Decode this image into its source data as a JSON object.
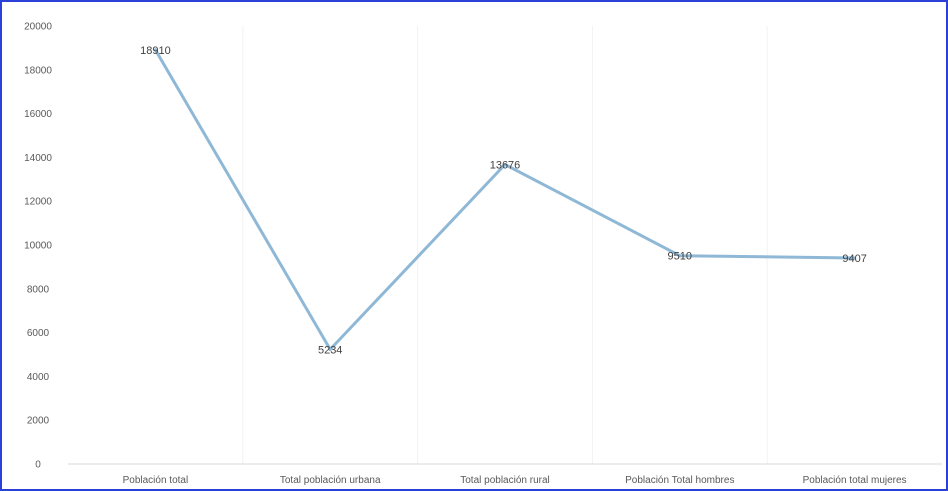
{
  "chart_data": {
    "type": "line",
    "categories": [
      "Población total",
      "Total población urbana",
      "Total población rural",
      "Población Total hombres",
      "Población total mujeres"
    ],
    "values": [
      18910,
      5234,
      13676,
      9510,
      9407
    ],
    "data_labels": [
      "18910",
      "5234",
      "13676",
      "9510",
      "9407"
    ],
    "yticks": [
      "0",
      "2000",
      "4000",
      "6000",
      "8000",
      "10000",
      "12000",
      "14000",
      "16000",
      "18000",
      "20000"
    ],
    "ylim": [
      0,
      20000
    ],
    "grid": "vertical-light",
    "line_color": "#8fb8d6",
    "frame_color": "#2b3fd9"
  }
}
